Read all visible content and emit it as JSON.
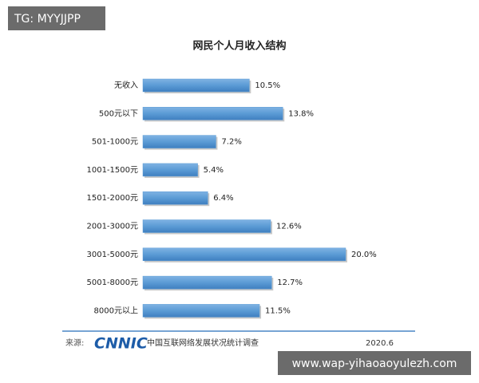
{
  "chart_data": {
    "type": "hbar",
    "title": "网民个人月收入结构",
    "categories": [
      "无收入",
      "500元以下",
      "501-1000元",
      "1001-1500元",
      "1501-2000元",
      "2001-3000元",
      "3001-5000元",
      "5001-8000元",
      "8000元以上"
    ],
    "values": [
      10.5,
      13.8,
      7.2,
      5.4,
      6.4,
      12.6,
      20.0,
      12.7,
      11.5
    ],
    "value_labels": [
      "10.5%",
      "13.8%",
      "7.2%",
      "5.4%",
      "6.4%",
      "12.6%",
      "20.0%",
      "12.7%",
      "11.5%"
    ],
    "color": "#5b9bd5",
    "source_label": "来源:",
    "source_logo": "CNNIC",
    "source_text": "中国互联网络发展状况统计调查",
    "date": "2020.6"
  },
  "overlay": {
    "top_tag": "TG: MYYJJPP",
    "bottom_tag": "www.wap-yihaoaoyulezh.com"
  }
}
